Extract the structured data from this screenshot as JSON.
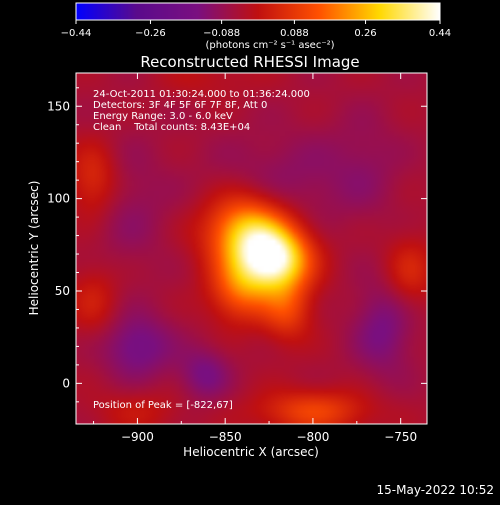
{
  "colorbar": {
    "min": -0.44,
    "max": 0.44,
    "ticks": [
      "-0.44",
      "-0.26",
      "-0.088",
      "0.088",
      "0.26",
      "0.44"
    ],
    "units_label": "(photons cm⁻² s⁻¹ asec⁻²)",
    "gradient_colors": [
      "#0000ff",
      "#5a0a8c",
      "#7a0f80",
      "#c01010",
      "#ff5000",
      "#ffd800",
      "#ffffff"
    ]
  },
  "info_lines": [
    "24-Oct-2011 01:30:24.000 to 01:36:24.000",
    "Detectors: 3F 4F 5F 6F 7F 8F, Att 0",
    "Energy Range: 3.0 - 6.0 keV",
    "Clean    Total counts: 8.43E+04"
  ],
  "peak_label": "Position of Peak = [-822,67]",
  "timestamp": "15-May-2022 10:52",
  "chart_data": {
    "type": "heatmap",
    "title": "Reconstructed RHESSI Image",
    "xlabel": "Heliocentric X (arcsec)",
    "ylabel": "Heliocentric Y (arcsec)",
    "xlim": [
      -935,
      -735
    ],
    "ylim": [
      -22,
      168
    ],
    "xticks": [
      -900,
      -850,
      -800,
      -750
    ],
    "xtick_labels": [
      "−900",
      "−850",
      "−800",
      "−750"
    ],
    "yticks": [
      0,
      50,
      100,
      150
    ],
    "ytick_labels": [
      "0",
      "50",
      "100",
      "150"
    ],
    "peak": {
      "x": -822,
      "y": 67
    },
    "source_blobs": [
      {
        "x": -822,
        "y": 67,
        "amp": 0.44,
        "sx": 14,
        "sy": 12
      },
      {
        "x": -838,
        "y": 82,
        "amp": 0.32,
        "sx": 16,
        "sy": 14
      },
      {
        "x": -842,
        "y": 50,
        "amp": 0.18,
        "sx": 12,
        "sy": 12
      },
      {
        "x": -815,
        "y": 40,
        "amp": 0.15,
        "sx": 10,
        "sy": 12
      },
      {
        "x": -815,
        "y": 110,
        "amp": -0.06,
        "sx": 30,
        "sy": 18
      },
      {
        "x": -925,
        "y": 110,
        "amp": 0.12,
        "sx": 10,
        "sy": 14
      },
      {
        "x": -925,
        "y": 45,
        "amp": 0.08,
        "sx": 10,
        "sy": 14
      },
      {
        "x": -745,
        "y": 60,
        "amp": 0.1,
        "sx": 10,
        "sy": 14
      },
      {
        "x": -800,
        "y": -15,
        "amp": 0.16,
        "sx": 22,
        "sy": 8
      },
      {
        "x": -900,
        "y": -15,
        "amp": 0.06,
        "sx": 18,
        "sy": 8
      },
      {
        "x": -860,
        "y": 165,
        "amp": 0.04,
        "sx": 20,
        "sy": 8
      },
      {
        "x": -900,
        "y": 20,
        "amp": -0.12,
        "sx": 14,
        "sy": 12
      },
      {
        "x": -862,
        "y": 5,
        "amp": -0.1,
        "sx": 10,
        "sy": 10
      },
      {
        "x": -760,
        "y": 30,
        "amp": -0.1,
        "sx": 12,
        "sy": 18
      },
      {
        "x": -905,
        "y": 95,
        "amp": -0.05,
        "sx": 16,
        "sy": 25
      },
      {
        "x": -770,
        "y": 120,
        "amp": -0.04,
        "sx": 14,
        "sy": 20
      }
    ],
    "background": -0.05,
    "grid": false
  }
}
